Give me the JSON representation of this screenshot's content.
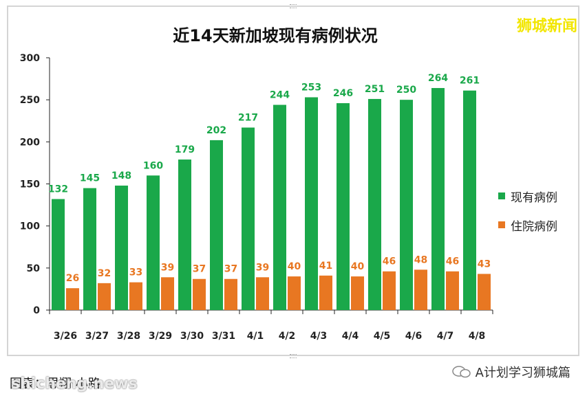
{
  "watermark_top": "狮城新闻",
  "credit": "图表：思翔·小路",
  "site_mark": "shicheng.news",
  "account_name": "A计划学习狮城篇",
  "colors": {
    "active": "#1aa84a",
    "hospital": "#e87722"
  },
  "chart_data": {
    "type": "bar",
    "title": "近14天新加坡现有病例状况",
    "categories": [
      "3/26",
      "3/27",
      "3/28",
      "3/29",
      "3/30",
      "3/31",
      "4/1",
      "4/2",
      "4/3",
      "4/4",
      "4/5",
      "4/6",
      "4/7",
      "4/8"
    ],
    "series": [
      {
        "name": "现有病例",
        "color": "#1aa84a",
        "values": [
          132,
          145,
          148,
          160,
          179,
          202,
          217,
          244,
          253,
          246,
          251,
          250,
          264,
          261
        ]
      },
      {
        "name": "住院病例",
        "color": "#e87722",
        "values": [
          26,
          32,
          33,
          39,
          37,
          37,
          39,
          40,
          41,
          40,
          46,
          48,
          46,
          43
        ]
      }
    ],
    "ylim": [
      0,
      300
    ],
    "yticks": [
      0,
      50,
      100,
      150,
      200,
      250,
      300
    ],
    "grid": false,
    "legend": "right",
    "data_labels": true
  }
}
